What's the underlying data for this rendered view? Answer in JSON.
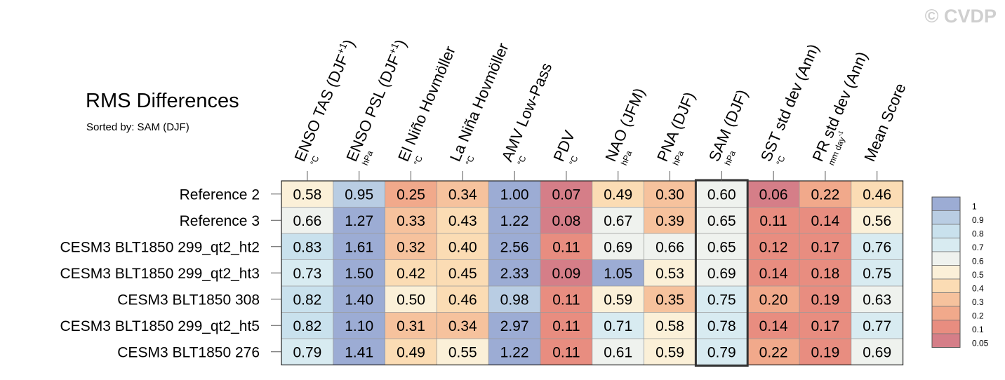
{
  "title": "RMS Differences",
  "subtitle": "Sorted by: SAM (DJF)",
  "copyright": "© CVDP",
  "chart_data": {
    "type": "heatmap",
    "title": "RMS Differences",
    "subtitle": "Sorted by: SAM (DJF)",
    "columns": [
      {
        "label": "ENSO TAS (DJF",
        "sup": "+1",
        "suffix": ")",
        "unit": "°C"
      },
      {
        "label": "ENSO PSL (DJF",
        "sup": "+1",
        "suffix": ")",
        "unit": "hPa"
      },
      {
        "label": "El Niño Hovmöller",
        "unit": "°C"
      },
      {
        "label": "La Niña Hovmöller",
        "unit": "°C"
      },
      {
        "label": "AMV Low-Pass",
        "unit": "°C"
      },
      {
        "label": "PDV",
        "unit": "°C"
      },
      {
        "label": "NAO (JFM)",
        "unit": "hPa"
      },
      {
        "label": "PNA (DJF)",
        "unit": "hPa"
      },
      {
        "label": "SAM (DJF)",
        "unit": "hPa"
      },
      {
        "label": "SST std dev (Ann)",
        "unit": "°C"
      },
      {
        "label": "PR std dev (Ann)",
        "unit": "mm day",
        "unit_sup": "-1"
      },
      {
        "label": "Mean Score",
        "unit": ""
      }
    ],
    "rows": [
      "Reference 2",
      "Reference 3",
      "CESM3 BLT1850 299_qt2_ht2",
      "CESM3 BLT1850 299_qt2_ht3",
      "CESM3 BLT1850 308",
      "CESM3 BLT1850 299_qt2_ht5",
      "CESM3 BLT1850 276"
    ],
    "values": [
      [
        "0.58",
        "0.95",
        "0.25",
        "0.34",
        "1.00",
        "0.07",
        "0.49",
        "0.30",
        "0.60",
        "0.06",
        "0.22",
        "0.46"
      ],
      [
        "0.66",
        "1.27",
        "0.33",
        "0.43",
        "1.22",
        "0.08",
        "0.67",
        "0.39",
        "0.65",
        "0.11",
        "0.14",
        "0.56"
      ],
      [
        "0.83",
        "1.61",
        "0.32",
        "0.40",
        "2.56",
        "0.11",
        "0.69",
        "0.66",
        "0.65",
        "0.12",
        "0.17",
        "0.76"
      ],
      [
        "0.73",
        "1.50",
        "0.42",
        "0.45",
        "2.33",
        "0.09",
        "1.05",
        "0.53",
        "0.69",
        "0.14",
        "0.18",
        "0.75"
      ],
      [
        "0.82",
        "1.40",
        "0.50",
        "0.46",
        "0.98",
        "0.11",
        "0.59",
        "0.35",
        "0.75",
        "0.20",
        "0.19",
        "0.63"
      ],
      [
        "0.82",
        "1.10",
        "0.31",
        "0.34",
        "2.97",
        "0.11",
        "0.71",
        "0.58",
        "0.78",
        "0.14",
        "0.17",
        "0.77"
      ],
      [
        "0.79",
        "1.41",
        "0.49",
        "0.55",
        "1.22",
        "0.11",
        "0.61",
        "0.59",
        "0.79",
        "0.22",
        "0.19",
        "0.69"
      ]
    ],
    "highlighted_column": "SAM (DJF)",
    "colorbar": {
      "levels": [
        "1",
        "0.9",
        "0.8",
        "0.7",
        "0.6",
        "0.5",
        "0.4",
        "0.3",
        "0.2",
        "0.1",
        "0.05"
      ],
      "colors": [
        "#9cacd4",
        "#b9cde3",
        "#c9e1ed",
        "#d8ebf1",
        "#eff2ee",
        "#fbf0d8",
        "#fbdcb4",
        "#f6c29d",
        "#f1a98b",
        "#e88d80",
        "#d57e88"
      ]
    }
  }
}
